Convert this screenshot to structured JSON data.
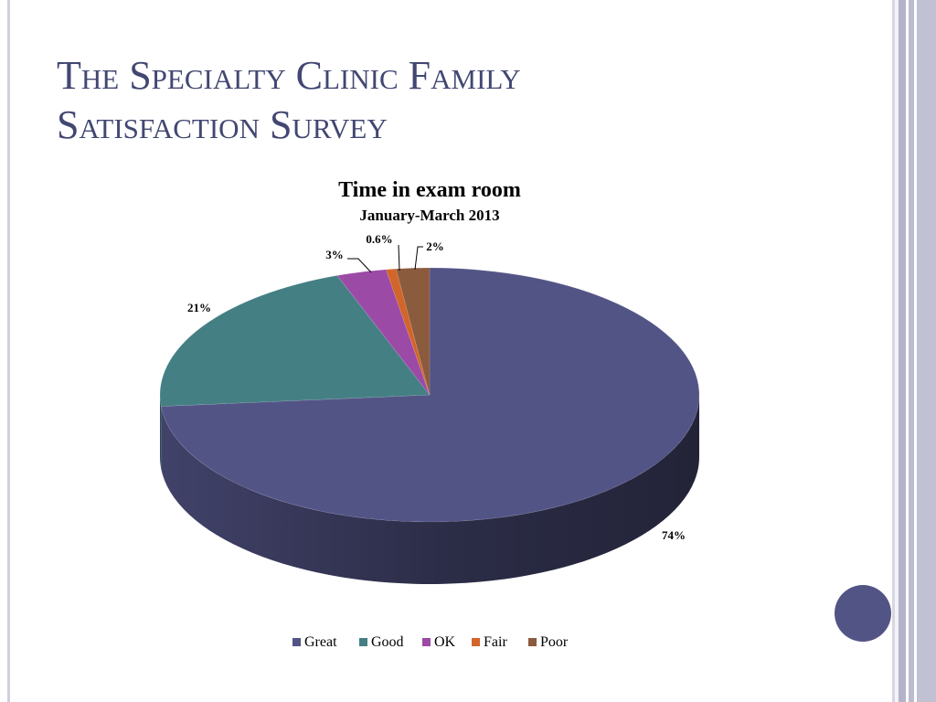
{
  "slide": {
    "title_line1": "The Specialty Clinic Family",
    "title_line2": "Satisfaction Survey"
  },
  "colors": {
    "title": "#424772",
    "accent": "#535486"
  },
  "chart_data": {
    "type": "pie",
    "style": "3d",
    "title": "Time in exam room",
    "subtitle": "January-March 2013",
    "categories": [
      "Great",
      "Good",
      "OK",
      "Fair",
      "Poor"
    ],
    "values": [
      74,
      21,
      3,
      0.6,
      2
    ],
    "data_labels": [
      "74%",
      "21%",
      "3%",
      "0.6%",
      "2%"
    ],
    "colors": [
      "#535486",
      "#447f84",
      "#9b4aa6",
      "#d2652a",
      "#8b5b3e"
    ],
    "legend": "bottom"
  }
}
